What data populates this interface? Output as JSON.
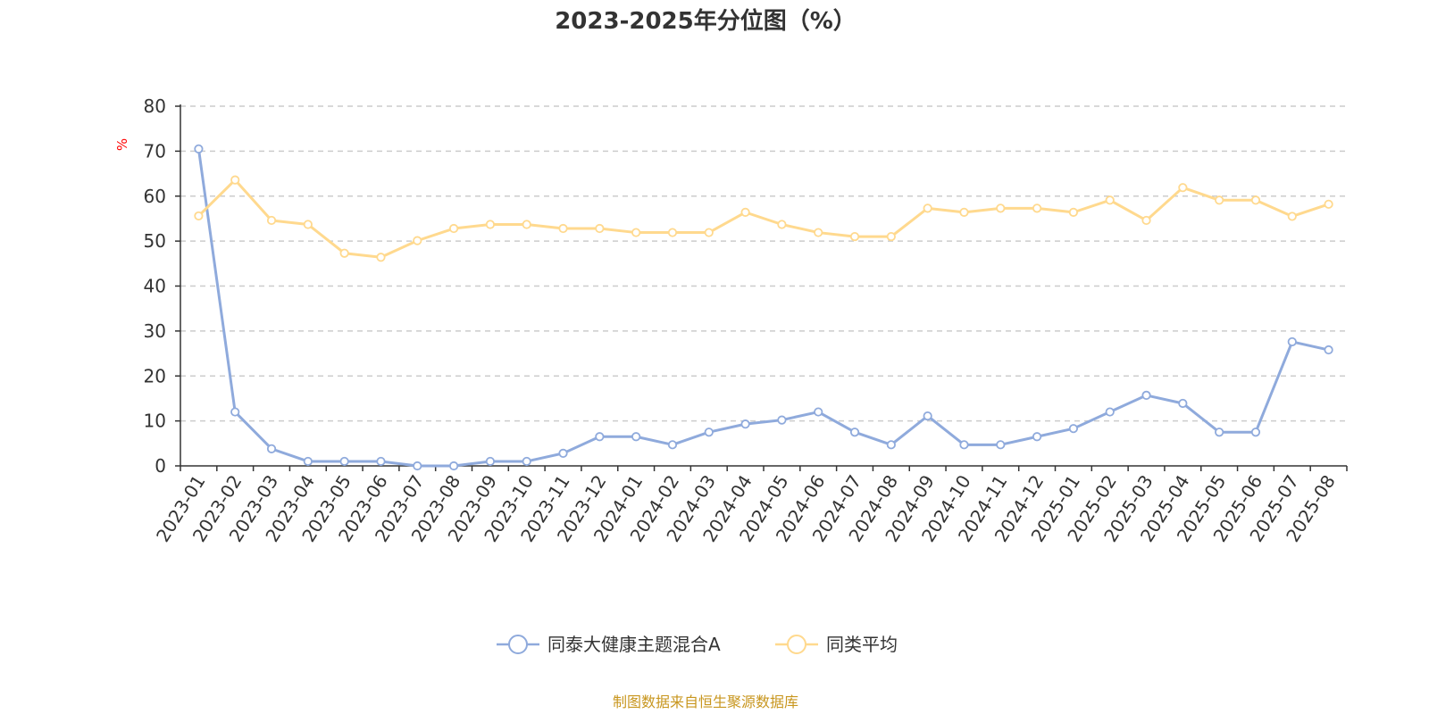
{
  "chart_data": {
    "type": "line",
    "title": "2023-2025年分位图（%）",
    "yunit": "%",
    "ylim": [
      0,
      80
    ],
    "yticks": [
      "0",
      "10",
      "20",
      "30",
      "40",
      "50",
      "60",
      "70",
      "80"
    ],
    "grid": "horizontal-dashed",
    "legend_position": "bottom-center",
    "categories": [
      "2023-01",
      "2023-02",
      "2023-03",
      "2023-04",
      "2023-05",
      "2023-06",
      "2023-07",
      "2023-08",
      "2023-09",
      "2023-10",
      "2023-11",
      "2023-12",
      "2024-01",
      "2024-02",
      "2024-03",
      "2024-04",
      "2024-05",
      "2024-06",
      "2024-07",
      "2024-08",
      "2024-09",
      "2024-10",
      "2024-11",
      "2024-12",
      "2025-01",
      "2025-02",
      "2025-03",
      "2025-04",
      "2025-05",
      "2025-06",
      "2025-07",
      "2025-08"
    ],
    "series": [
      {
        "name": "同泰大健康主题混合A",
        "color": "#8faadc",
        "values": [
          70.5,
          12,
          3.8,
          1,
          1,
          1,
          0,
          0,
          1,
          1,
          2.8,
          6.5,
          6.5,
          4.7,
          7.5,
          9.3,
          10.2,
          12,
          7.5,
          4.7,
          11.1,
          4.7,
          4.7,
          6.5,
          8.3,
          12,
          15.7,
          13.9,
          7.5,
          7.5,
          27.6,
          25.8
        ]
      },
      {
        "name": "同类平均",
        "color": "#ffd98e",
        "values": [
          55.6,
          63.6,
          54.6,
          53.7,
          47.3,
          46.4,
          50.1,
          52.8,
          53.7,
          53.7,
          52.8,
          52.8,
          51.9,
          51.9,
          51.9,
          56.4,
          53.7,
          51.9,
          51,
          51,
          57.3,
          56.4,
          57.3,
          57.3,
          56.4,
          59.1,
          54.6,
          61.9,
          59.1,
          59.1,
          55.5,
          58.2
        ]
      }
    ]
  },
  "source": "制图数据来自恒生聚源数据库"
}
